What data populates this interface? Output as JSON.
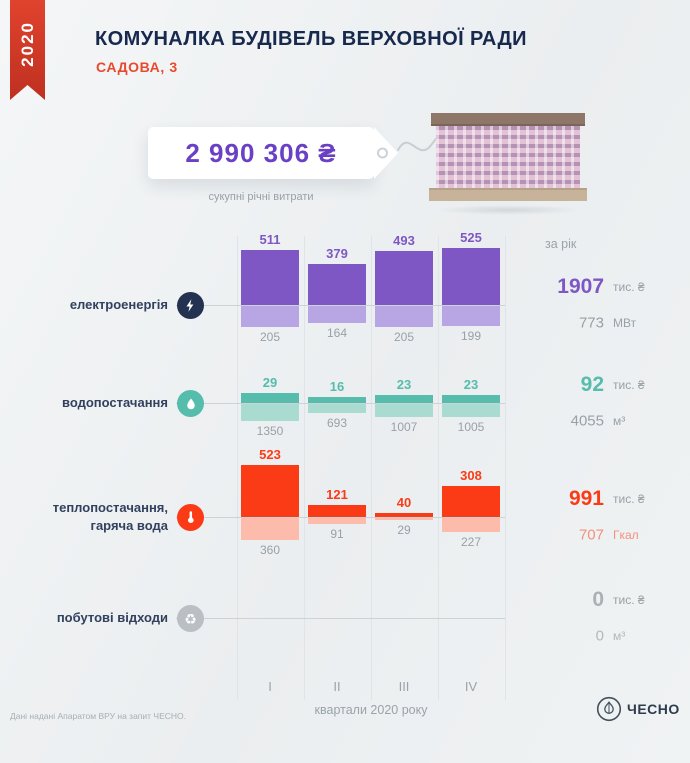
{
  "meta": {
    "year": "2020"
  },
  "header": {
    "title": "КОМУНАЛКА БУДІВЕЛЬ ВЕРХОВНОЇ РАДИ",
    "subtitle": "САДОВА, 3"
  },
  "price_tag": {
    "amount": "2 990 306 ₴",
    "caption": "сукупні річні витрати"
  },
  "per_year_label": "за рік",
  "chart_data": {
    "type": "bar",
    "categories": [
      "I",
      "II",
      "III",
      "IV"
    ],
    "x_caption": "квартали 2020 року",
    "rows": [
      {
        "id": "electricity",
        "label": "електроенергія",
        "icon": "lightning-icon",
        "icon_bg": "#233250",
        "color": "#7e57c5",
        "color_light": "#b8a5e3",
        "secondary_color": "#98a1a7",
        "cost_values": [
          511,
          379,
          493,
          525
        ],
        "usage_values": [
          205,
          164,
          205,
          199
        ],
        "total_cost": "1907",
        "total_cost_unit": "тис. ₴",
        "total_usage": "773",
        "total_usage_unit": "МВт"
      },
      {
        "id": "water",
        "label": "водопостачання",
        "icon": "droplet-icon",
        "icon_bg": "#56bcab",
        "color": "#56bcab",
        "color_light": "#a9dbd1",
        "secondary_color": "#98a1a7",
        "cost_values": [
          29,
          16,
          23,
          23
        ],
        "usage_values": [
          1350,
          693,
          1007,
          1005
        ],
        "total_cost": "92",
        "total_cost_unit": "тис. ₴",
        "total_usage": "4055",
        "total_usage_unit": "м³"
      },
      {
        "id": "heating",
        "label": "теплопостачання,\nгаряча вода",
        "icon": "thermometer-icon",
        "icon_bg": "#fb3b16",
        "color": "#fb3b16",
        "color_light": "#fdbcab",
        "secondary_color": "#f5907c",
        "cost_values": [
          523,
          121,
          40,
          308
        ],
        "usage_values": [
          360,
          91,
          29,
          227
        ],
        "total_cost": "991",
        "total_cost_unit": "тис. ₴",
        "total_usage": "707",
        "total_usage_unit": "Гкал"
      },
      {
        "id": "waste",
        "label": "побутові відходи",
        "icon": "recycle-icon",
        "icon_bg": "#b9bfc3",
        "color": "#a9b1b6",
        "color_light": "#d7dcde",
        "secondary_color": "#b2b9bd",
        "cost_values": [],
        "usage_values": [],
        "total_cost": "0",
        "total_cost_unit": "тис. ₴",
        "total_usage": "0",
        "total_usage_unit": "м³"
      }
    ]
  },
  "footer": {
    "source": "Дані надані Апаратом ВРУ на запит ЧЕСНО.",
    "logo": "ЧЕСНО"
  }
}
